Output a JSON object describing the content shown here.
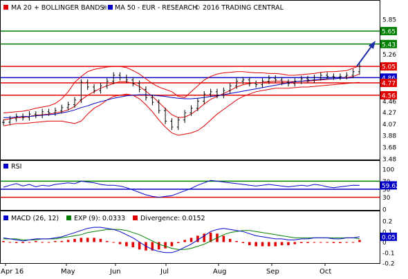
{
  "chart_data": {
    "type": "line",
    "x_labels": [
      "Apr 16",
      "May",
      "Jun",
      "Jul",
      "Aug",
      "Sep",
      "Oct"
    ],
    "price_panel": {
      "legend": [
        "MA 20 + BOLLINGER BANDS",
        "MA 50 - EUR - RESEARCH",
        "2016 TRADING CENTRAL"
      ],
      "yticks": [
        "5.85",
        "5.65",
        "5.43",
        "5.26",
        "5.05",
        "4.86",
        "4.77",
        "4.56",
        "4.46",
        "4.27",
        "4.07",
        "3.88",
        "3.68",
        "3.48"
      ],
      "ylim": [
        3.48,
        5.92
      ],
      "levels": [
        {
          "value": 5.65,
          "label": "5.65",
          "color": "#008000"
        },
        {
          "value": 5.43,
          "label": "5.43",
          "color": "#008000"
        },
        {
          "value": 5.05,
          "label": "5.05",
          "color": "#e00000"
        },
        {
          "value": 4.86,
          "label": "4.86",
          "color": "#0000c8"
        },
        {
          "value": 4.77,
          "label": "4.77",
          "color": "#e00000"
        },
        {
          "value": 4.56,
          "label": "4.56",
          "color": "#e00000"
        }
      ],
      "close": [
        4.1,
        4.16,
        4.2,
        4.18,
        4.24,
        4.22,
        4.28,
        4.26,
        4.3,
        4.35,
        4.4,
        4.48,
        4.78,
        4.7,
        4.64,
        4.72,
        4.8,
        4.9,
        4.86,
        4.82,
        4.76,
        4.66,
        4.52,
        4.44,
        4.3,
        4.12,
        4.02,
        4.14,
        4.26,
        4.34,
        4.46,
        4.58,
        4.62,
        4.56,
        4.64,
        4.72,
        4.8,
        4.82,
        4.76,
        4.74,
        4.8,
        4.85,
        4.82,
        4.78,
        4.76,
        4.8,
        4.84,
        4.82,
        4.86,
        4.9,
        4.88,
        4.87,
        4.88,
        4.9,
        4.96,
        5.05
      ],
      "ma20": [
        4.14,
        4.16,
        4.18,
        4.18,
        4.2,
        4.22,
        4.23,
        4.24,
        4.26,
        4.28,
        4.31,
        4.37,
        4.48,
        4.56,
        4.62,
        4.68,
        4.72,
        4.76,
        4.79,
        4.79,
        4.76,
        4.71,
        4.63,
        4.54,
        4.44,
        4.33,
        4.23,
        4.18,
        4.19,
        4.24,
        4.32,
        4.41,
        4.49,
        4.54,
        4.59,
        4.64,
        4.7,
        4.74,
        4.76,
        4.77,
        4.78,
        4.79,
        4.8,
        4.8,
        4.79,
        4.79,
        4.8,
        4.8,
        4.81,
        4.82,
        4.83,
        4.84,
        4.85,
        4.86,
        4.88,
        4.92
      ],
      "bb_upper": [
        4.26,
        4.27,
        4.28,
        4.29,
        4.31,
        4.34,
        4.36,
        4.38,
        4.42,
        4.5,
        4.62,
        4.78,
        4.88,
        4.96,
        5.0,
        5.02,
        5.04,
        5.05,
        5.05,
        5.03,
        4.98,
        4.92,
        4.84,
        4.76,
        4.7,
        4.66,
        4.62,
        4.54,
        4.52,
        4.62,
        4.72,
        4.82,
        4.88,
        4.92,
        4.94,
        4.95,
        4.96,
        4.96,
        4.95,
        4.94,
        4.94,
        4.93,
        4.93,
        4.92,
        4.9,
        4.9,
        4.91,
        4.92,
        4.93,
        4.95,
        4.96,
        4.96,
        4.97,
        4.98,
        5.02,
        5.06
      ],
      "bb_lower": [
        4.04,
        4.06,
        4.08,
        4.08,
        4.09,
        4.1,
        4.11,
        4.12,
        4.12,
        4.12,
        4.1,
        4.08,
        4.12,
        4.24,
        4.34,
        4.4,
        4.48,
        4.54,
        4.56,
        4.58,
        4.56,
        4.5,
        4.4,
        4.28,
        4.14,
        4.02,
        3.92,
        3.88,
        3.9,
        3.92,
        3.96,
        4.04,
        4.14,
        4.24,
        4.32,
        4.4,
        4.48,
        4.54,
        4.58,
        4.62,
        4.64,
        4.66,
        4.68,
        4.68,
        4.68,
        4.69,
        4.7,
        4.7,
        4.71,
        4.72,
        4.73,
        4.74,
        4.75,
        4.76,
        4.77,
        4.78
      ],
      "ma50": [
        4.18,
        4.18,
        4.19,
        4.2,
        4.2,
        4.21,
        4.22,
        4.23,
        4.24,
        4.26,
        4.28,
        4.31,
        4.35,
        4.38,
        4.42,
        4.45,
        4.48,
        4.51,
        4.53,
        4.55,
        4.56,
        4.57,
        4.57,
        4.56,
        4.55,
        4.54,
        4.52,
        4.51,
        4.5,
        4.5,
        4.51,
        4.52,
        4.54,
        4.55,
        4.57,
        4.59,
        4.61,
        4.63,
        4.65,
        4.67,
        4.69,
        4.71,
        4.73,
        4.75,
        4.77,
        4.79,
        4.8,
        4.81,
        4.82,
        4.83,
        4.84,
        4.84,
        4.85,
        4.85,
        4.86,
        4.86
      ]
    },
    "rsi_panel": {
      "legend": [
        "RSI"
      ],
      "yticks": [
        "100",
        "70",
        "50",
        "30",
        "0"
      ],
      "ylim": [
        0,
        100
      ],
      "levels": [
        {
          "value": 70,
          "color": "#008000"
        },
        {
          "value": 50,
          "color": "#0000c8"
        },
        {
          "value": 30,
          "color": "#e00000"
        }
      ],
      "current_label": "59.62",
      "values": [
        55,
        60,
        64,
        58,
        62,
        56,
        60,
        58,
        62,
        64,
        66,
        64,
        70,
        68,
        66,
        62,
        60,
        60,
        58,
        54,
        48,
        42,
        36,
        32,
        30,
        32,
        34,
        40,
        46,
        52,
        60,
        66,
        72,
        70,
        68,
        66,
        64,
        62,
        60,
        58,
        60,
        62,
        60,
        58,
        56,
        58,
        60,
        58,
        62,
        60,
        56,
        54,
        56,
        58,
        60,
        59.62
      ]
    },
    "macd_panel": {
      "legend": [
        "MACD (26, 12)",
        "EXP (9): 0.0333",
        "Divergence: 0.0152"
      ],
      "yticks": [
        "0.2",
        "0.1",
        "0",
        "-0.1",
        "-0.2"
      ],
      "ylim": [
        -0.2,
        0.2
      ],
      "current_label": "0.05",
      "macd": [
        0.04,
        0.03,
        0.02,
        0.01,
        0.02,
        0.03,
        0.03,
        0.03,
        0.04,
        0.05,
        0.07,
        0.09,
        0.11,
        0.13,
        0.14,
        0.14,
        0.13,
        0.12,
        0.1,
        0.07,
        0.04,
        0.0,
        -0.04,
        -0.07,
        -0.09,
        -0.1,
        -0.1,
        -0.08,
        -0.05,
        -0.02,
        0.02,
        0.06,
        0.1,
        0.12,
        0.13,
        0.12,
        0.11,
        0.1,
        0.08,
        0.06,
        0.05,
        0.04,
        0.03,
        0.03,
        0.02,
        0.02,
        0.03,
        0.03,
        0.04,
        0.04,
        0.04,
        0.03,
        0.03,
        0.04,
        0.04,
        0.05
      ],
      "signal": [
        0.03,
        0.03,
        0.03,
        0.02,
        0.02,
        0.02,
        0.03,
        0.03,
        0.03,
        0.04,
        0.05,
        0.06,
        0.07,
        0.09,
        0.1,
        0.11,
        0.12,
        0.12,
        0.12,
        0.11,
        0.09,
        0.07,
        0.04,
        0.01,
        -0.02,
        -0.04,
        -0.06,
        -0.07,
        -0.07,
        -0.06,
        -0.04,
        -0.02,
        0.01,
        0.04,
        0.07,
        0.09,
        0.1,
        0.11,
        0.11,
        0.1,
        0.09,
        0.08,
        0.07,
        0.06,
        0.05,
        0.04,
        0.04,
        0.04,
        0.04,
        0.04,
        0.04,
        0.04,
        0.04,
        0.04,
        0.04,
        0.03
      ]
    }
  },
  "colors": {
    "price_bar": "#000000",
    "bollinger": "#e00000",
    "ma50": "#0000c8",
    "rsi_line": "#0000c8",
    "macd_line": "#0000c8",
    "signal_line": "#008000",
    "divergence": "#e00000",
    "arrow": "#1c2fa8"
  }
}
